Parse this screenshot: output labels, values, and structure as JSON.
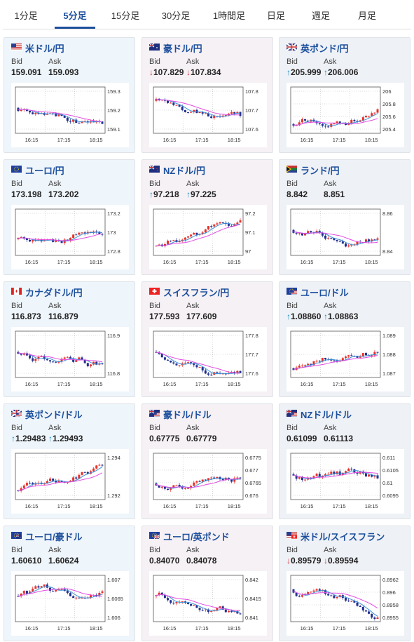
{
  "tabs": [
    {
      "label": "1分足",
      "active": false
    },
    {
      "label": "5分足",
      "active": true
    },
    {
      "label": "15分足",
      "active": false
    },
    {
      "label": "30分足",
      "active": false
    },
    {
      "label": "1時間足",
      "active": false
    },
    {
      "label": "日足",
      "active": false
    },
    {
      "label": "週足",
      "active": false
    },
    {
      "label": "月足",
      "active": false
    }
  ],
  "labels": {
    "bid": "Bid",
    "ask": "Ask"
  },
  "colors": {
    "up": "#e8302a",
    "down": "#1f2f8f",
    "ma": "#e24be2",
    "accent": "#1c4f9c"
  },
  "cards": [
    {
      "pair": "米ドル/円",
      "flag": "us",
      "trend": "",
      "bid": "159.091",
      "ask": "159.093",
      "chart": {
        "ylabels": [
          "159.3",
          "159.2",
          "159.1"
        ],
        "xlabels": [
          "16:15",
          "17:15",
          "18:15"
        ]
      }
    },
    {
      "pair": "豪ドル/円",
      "flag": "au",
      "trend": "down",
      "bid": "107.829",
      "ask": "107.834",
      "chart": {
        "ylabels": [
          "107.8",
          "107.7",
          "107.6"
        ],
        "xlabels": [
          "16:15",
          "17:15",
          "18:15"
        ]
      }
    },
    {
      "pair": "英ポンド/円",
      "flag": "gb",
      "trend": "up",
      "bid": "205.999",
      "ask": "206.006",
      "chart": {
        "ylabels": [
          "206",
          "205.8",
          "205.6",
          "205.4"
        ],
        "xlabels": [
          "16:15",
          "17:15",
          "18:15"
        ]
      }
    },
    {
      "pair": "ユーロ/円",
      "flag": "eu",
      "trend": "",
      "bid": "173.198",
      "ask": "173.202",
      "chart": {
        "ylabels": [
          "173.2",
          "173",
          "172.8"
        ],
        "xlabels": [
          "16:15",
          "17:15",
          "18:15"
        ]
      }
    },
    {
      "pair": "NZドル/円",
      "flag": "nz",
      "trend": "up",
      "bid": "97.218",
      "ask": "97.225",
      "chart": {
        "ylabels": [
          "97.2",
          "97.1",
          "97"
        ],
        "xlabels": [
          "16:15",
          "17:15",
          "18:15"
        ]
      }
    },
    {
      "pair": "ランド/円",
      "flag": "za",
      "trend": "",
      "bid": "8.842",
      "ask": "8.851",
      "chart": {
        "ylabels": [
          "8.86",
          "8.84"
        ],
        "xlabels": [
          "16:15",
          "17:15",
          "18:15"
        ]
      }
    },
    {
      "pair": "カナダドル/円",
      "flag": "ca",
      "trend": "",
      "bid": "116.873",
      "ask": "116.879",
      "chart": {
        "ylabels": [
          "116.9",
          "116.8"
        ],
        "xlabels": [
          "16:15",
          "17:15",
          "18:15"
        ]
      }
    },
    {
      "pair": "スイスフラン/円",
      "flag": "ch",
      "trend": "",
      "bid": "177.593",
      "ask": "177.609",
      "chart": {
        "ylabels": [
          "177.8",
          "177.7",
          "177.6"
        ],
        "xlabels": [
          "16:15",
          "17:15",
          "18:15"
        ]
      }
    },
    {
      "pair": "ユーロ/ドル",
      "flag": "euus",
      "trend": "up",
      "bid": "1.08860",
      "ask": "1.08863",
      "chart": {
        "ylabels": [
          "1.089",
          "1.088",
          "1.087"
        ],
        "xlabels": [
          "16:15",
          "17:15",
          "18:15"
        ]
      }
    },
    {
      "pair": "英ポンド/ドル",
      "flag": "gbus",
      "trend": "up",
      "bid": "1.29483",
      "ask": "1.29493",
      "chart": {
        "ylabels": [
          "1.294",
          "1.292"
        ],
        "xlabels": [
          "16:15",
          "17:15",
          "18:15"
        ]
      }
    },
    {
      "pair": "豪ドル/ドル",
      "flag": "auus",
      "trend": "",
      "bid": "0.67775",
      "ask": "0.67779",
      "chart": {
        "ylabels": [
          "0.6775",
          "0.677",
          "0.6765",
          "0.676"
        ],
        "xlabels": [
          "16:15",
          "17:15",
          "18:15"
        ]
      }
    },
    {
      "pair": "NZドル/ドル",
      "flag": "nzus",
      "trend": "",
      "bid": "0.61099",
      "ask": "0.61113",
      "chart": {
        "ylabels": [
          "0.611",
          "0.6105",
          "0.61",
          "0.6095"
        ],
        "xlabels": [
          "16:15",
          "17:15",
          "18:15"
        ]
      }
    },
    {
      "pair": "ユーロ/豪ドル",
      "flag": "euau",
      "trend": "",
      "bid": "1.60610",
      "ask": "1.60624",
      "chart": {
        "ylabels": [
          "1.607",
          "1.6065",
          "1.606"
        ],
        "xlabels": [
          "16:15",
          "17:15",
          "18:15"
        ]
      }
    },
    {
      "pair": "ユーロ/英ポンド",
      "flag": "eugb",
      "trend": "",
      "bid": "0.84070",
      "ask": "0.84078",
      "chart": {
        "ylabels": [
          "0.842",
          "0.8415",
          "0.841"
        ],
        "xlabels": [
          "16:15",
          "17:15",
          "18:15"
        ]
      }
    },
    {
      "pair": "米ドル/スイスフラン",
      "flag": "usch",
      "trend": "down",
      "bid": "0.89579",
      "ask": "0.89594",
      "chart": {
        "ylabels": [
          "0.8962",
          "0.896",
          "0.8958",
          "0.8955"
        ],
        "xlabels": [
          "16:15",
          "17:15",
          "18:15"
        ]
      }
    }
  ]
}
